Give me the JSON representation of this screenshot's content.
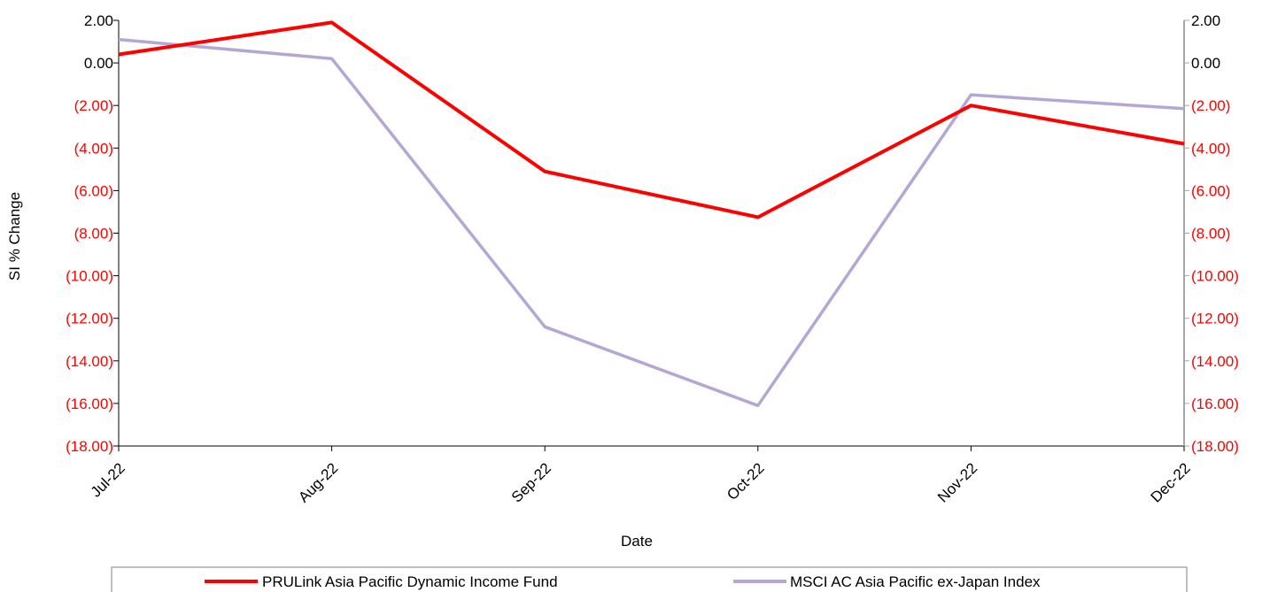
{
  "chart_data": {
    "type": "line",
    "categories": [
      "Jul-22",
      "Aug-22",
      "Sep-22",
      "Oct-22",
      "Nov-22",
      "Dec-22"
    ],
    "series": [
      {
        "name": "PRULink Asia Pacific Dynamic Income Fund",
        "color": "#ff0000",
        "values": [
          0.4,
          1.9,
          -5.1,
          -7.25,
          -2.0,
          -3.8
        ]
      },
      {
        "name": "MSCI AC Asia Pacific ex-Japan Index",
        "color": "#b4a7d6",
        "values": [
          1.1,
          0.2,
          -12.4,
          -16.1,
          -1.5,
          -2.15
        ]
      }
    ],
    "y_ticks": [
      "2.00",
      "0.00",
      "(2.00)",
      "(4.00)",
      "(6.00)",
      "(8.00)",
      "(10.00)",
      "(12.00)",
      "(14.00)",
      "(16.00)",
      "(18.00)"
    ],
    "y_tick_values": [
      2,
      0,
      -2,
      -4,
      -6,
      -8,
      -10,
      -12,
      -14,
      -16,
      -18
    ],
    "ylim": [
      -18,
      2
    ],
    "xlabel": "Date",
    "ylabel": "SI % Change",
    "secondary_y_axis": true,
    "negative_tick_color": "#ff0000",
    "positive_tick_color": "#000000",
    "legend_position": "bottom",
    "grid": false
  }
}
